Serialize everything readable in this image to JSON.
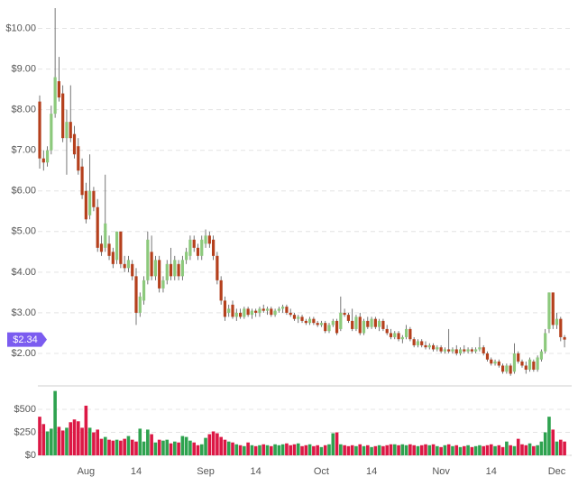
{
  "chart_data": {
    "type": "candlestick",
    "categories": [
      null,
      null,
      null,
      null,
      null,
      null,
      null,
      null,
      null,
      null,
      null,
      null,
      "Aug",
      null,
      null,
      null,
      null,
      null,
      null,
      null,
      null,
      null,
      null,
      null,
      null,
      "14",
      null,
      null,
      null,
      null,
      null,
      null,
      null,
      null,
      null,
      null,
      null,
      null,
      null,
      null,
      null,
      null,
      null,
      "Sep",
      null,
      null,
      null,
      null,
      null,
      null,
      null,
      null,
      null,
      null,
      null,
      null,
      "14",
      null,
      null,
      null,
      null,
      null,
      null,
      null,
      null,
      null,
      null,
      null,
      null,
      null,
      null,
      null,
      null,
      "Oct",
      null,
      null,
      null,
      null,
      null,
      null,
      null,
      null,
      null,
      null,
      null,
      null,
      "14",
      null,
      null,
      null,
      null,
      null,
      null,
      null,
      null,
      null,
      null,
      null,
      null,
      null,
      null,
      null,
      null,
      null,
      "Nov",
      null,
      null,
      null,
      null,
      null,
      null,
      null,
      null,
      null,
      null,
      null,
      null,
      "14",
      null,
      null,
      null,
      null,
      null,
      null,
      null,
      null,
      null,
      null,
      null,
      null,
      null,
      null,
      null,
      null,
      "Dec",
      null,
      null
    ],
    "open": [
      8.2,
      6.8,
      6.7,
      7.0,
      7.9,
      8.7,
      8.4,
      7.3,
      7.7,
      7.4,
      7.1,
      6.6,
      6.0,
      5.4,
      6.0,
      5.6,
      4.7,
      4.6,
      4.7,
      4.5,
      4.3,
      5.0,
      4.2,
      4.1,
      4.2,
      3.9,
      3.0,
      3.3,
      3.8,
      4.5,
      3.9,
      4.3,
      3.6,
      3.8,
      4.2,
      3.9,
      4.2,
      3.9,
      4.3,
      4.4,
      4.8,
      4.6,
      4.4,
      4.7,
      4.9,
      4.8,
      4.4,
      3.8,
      3.3,
      3.0,
      3.2,
      2.9,
      3.0,
      2.9,
      3.1,
      2.95,
      3.05,
      3.0,
      3.1,
      3.05,
      3.1,
      2.95,
      3.05,
      3.1,
      3.15,
      3.0,
      2.95,
      2.85,
      2.9,
      2.8,
      2.75,
      2.85,
      2.75,
      2.7,
      2.75,
      2.55,
      2.7,
      2.8,
      2.6,
      3.0,
      2.95,
      2.8,
      2.6,
      2.9,
      2.5,
      2.8,
      2.65,
      2.85,
      2.65,
      2.8,
      2.6,
      2.5,
      2.4,
      2.5,
      2.35,
      2.4,
      2.6,
      2.35,
      2.2,
      2.3,
      2.2,
      2.15,
      2.2,
      2.1,
      2.15,
      2.05,
      2.1,
      2.05,
      2.1,
      2.0,
      2.1,
      2.05,
      2.1,
      2.05,
      2.1,
      2.15,
      2.0,
      1.85,
      1.75,
      1.8,
      1.7,
      1.55,
      1.7,
      1.55,
      2.0,
      1.8,
      1.7,
      1.6,
      1.8,
      1.6,
      1.85,
      2.05,
      2.6,
      3.5,
      2.7,
      2.85,
      2.4
    ],
    "high": [
      8.35,
      7.0,
      7.1,
      8.1,
      10.5,
      9.3,
      8.6,
      8.0,
      8.6,
      7.6,
      7.3,
      6.8,
      6.2,
      6.9,
      6.1,
      5.8,
      4.9,
      6.4,
      4.9,
      4.6,
      5.0,
      5.0,
      4.4,
      4.4,
      4.3,
      4.1,
      3.5,
      3.9,
      5.0,
      4.9,
      4.4,
      4.4,
      3.9,
      4.3,
      4.6,
      4.4,
      4.3,
      4.4,
      4.6,
      4.9,
      4.9,
      4.7,
      4.9,
      5.05,
      5.0,
      4.9,
      4.5,
      3.9,
      3.4,
      3.2,
      3.3,
      3.1,
      3.1,
      3.15,
      3.15,
      3.1,
      3.1,
      3.15,
      3.2,
      3.15,
      3.15,
      3.1,
      3.15,
      3.2,
      3.2,
      3.1,
      3.0,
      2.95,
      2.95,
      2.85,
      2.9,
      2.9,
      2.8,
      2.8,
      2.8,
      2.75,
      2.85,
      2.85,
      3.4,
      3.1,
      3.0,
      3.1,
      2.95,
      3.0,
      2.85,
      2.9,
      2.9,
      2.9,
      2.85,
      2.85,
      2.7,
      2.6,
      2.55,
      2.55,
      2.45,
      2.7,
      2.65,
      2.4,
      2.35,
      2.35,
      2.3,
      2.25,
      2.25,
      2.2,
      2.2,
      2.15,
      2.6,
      2.15,
      2.2,
      2.15,
      2.2,
      2.15,
      2.15,
      2.15,
      2.4,
      2.2,
      2.05,
      1.9,
      1.85,
      1.85,
      1.75,
      1.75,
      1.75,
      2.25,
      2.05,
      1.85,
      1.8,
      1.9,
      1.85,
      1.95,
      2.1,
      2.6,
      3.5,
      3.5,
      3.0,
      2.9,
      2.45
    ],
    "low": [
      6.55,
      6.5,
      6.6,
      6.9,
      7.8,
      8.2,
      7.2,
      6.4,
      7.2,
      6.8,
      6.4,
      5.8,
      5.2,
      5.3,
      5.5,
      4.5,
      4.4,
      4.5,
      4.3,
      4.1,
      4.2,
      4.1,
      4.0,
      4.0,
      3.8,
      2.7,
      2.9,
      3.2,
      3.7,
      3.8,
      3.8,
      3.5,
      3.5,
      3.7,
      3.8,
      3.8,
      3.8,
      3.8,
      4.2,
      4.3,
      4.5,
      4.3,
      4.3,
      4.6,
      4.6,
      4.3,
      3.7,
      3.2,
      2.8,
      2.9,
      2.85,
      2.8,
      2.85,
      2.85,
      2.9,
      2.85,
      2.9,
      2.9,
      3.0,
      2.95,
      2.9,
      2.9,
      3.0,
      3.0,
      2.95,
      2.9,
      2.8,
      2.75,
      2.75,
      2.7,
      2.7,
      2.7,
      2.65,
      2.65,
      2.5,
      2.5,
      2.65,
      2.45,
      2.55,
      2.9,
      2.75,
      2.55,
      2.55,
      2.45,
      2.45,
      2.6,
      2.6,
      2.6,
      2.55,
      2.55,
      2.45,
      2.35,
      2.35,
      2.3,
      2.25,
      2.35,
      2.3,
      2.15,
      2.15,
      2.15,
      2.1,
      2.1,
      2.05,
      2.05,
      2.0,
      2.0,
      2.0,
      2.0,
      1.95,
      1.95,
      2.0,
      2.0,
      2.0,
      2.0,
      2.05,
      1.95,
      1.8,
      1.7,
      1.7,
      1.65,
      1.5,
      1.5,
      1.45,
      1.5,
      1.75,
      1.65,
      1.5,
      1.55,
      1.55,
      1.55,
      1.8,
      2.0,
      2.5,
      2.6,
      2.6,
      2.3,
      2.15
    ],
    "close": [
      6.8,
      6.7,
      7.0,
      7.9,
      8.8,
      8.3,
      7.3,
      7.7,
      7.3,
      6.9,
      6.5,
      5.9,
      5.3,
      6.0,
      5.6,
      4.6,
      4.5,
      5.2,
      4.4,
      4.2,
      5.0,
      4.2,
      4.1,
      4.3,
      3.9,
      3.0,
      3.4,
      3.8,
      4.8,
      3.9,
      4.3,
      3.6,
      3.8,
      4.2,
      3.9,
      4.3,
      3.9,
      4.3,
      4.5,
      4.8,
      4.6,
      4.4,
      4.8,
      4.9,
      4.7,
      4.4,
      3.8,
      3.3,
      2.9,
      3.1,
      2.9,
      3.0,
      2.9,
      3.1,
      2.95,
      3.05,
      3.0,
      3.1,
      3.05,
      3.1,
      2.95,
      3.05,
      3.1,
      3.15,
      3.0,
      2.95,
      2.85,
      2.9,
      2.8,
      2.75,
      2.85,
      2.75,
      2.7,
      2.75,
      2.55,
      2.7,
      2.8,
      2.5,
      3.0,
      2.95,
      2.8,
      2.6,
      2.9,
      2.5,
      2.8,
      2.65,
      2.85,
      2.65,
      2.8,
      2.6,
      2.5,
      2.4,
      2.5,
      2.35,
      2.4,
      2.6,
      2.35,
      2.2,
      2.3,
      2.2,
      2.15,
      2.2,
      2.1,
      2.15,
      2.05,
      2.1,
      2.05,
      2.1,
      2.0,
      2.1,
      2.05,
      2.1,
      2.05,
      2.1,
      2.15,
      2.0,
      1.85,
      1.75,
      1.8,
      1.7,
      1.55,
      1.7,
      1.5,
      2.0,
      1.8,
      1.7,
      1.6,
      1.85,
      1.6,
      1.9,
      2.05,
      2.5,
      3.5,
      2.7,
      2.85,
      2.4,
      2.34
    ],
    "ylim": [
      1.2,
      10.7
    ],
    "yticks": [
      {
        "value": 2,
        "label": "$2.00"
      },
      {
        "value": 3,
        "label": "$3.00"
      },
      {
        "value": 4,
        "label": "$4.00"
      },
      {
        "value": 5,
        "label": "$5.00"
      },
      {
        "value": 6,
        "label": "$6.00"
      },
      {
        "value": 7,
        "label": "$7.00"
      },
      {
        "value": 8,
        "label": "$8.00"
      },
      {
        "value": 9,
        "label": "$9.00"
      },
      {
        "value": 10,
        "label": "$10.00"
      }
    ],
    "up_color": "#8cc97c",
    "down_color": "#b5401d",
    "last_price": {
      "value": 2.34,
      "label": "$2.34"
    },
    "last_price_color": "#7b5cf0",
    "volume": {
      "values": [
        420,
        340,
        260,
        290,
        700,
        310,
        270,
        300,
        360,
        390,
        370,
        300,
        540,
        300,
        250,
        280,
        180,
        200,
        170,
        160,
        170,
        160,
        180,
        210,
        170,
        150,
        290,
        150,
        280,
        230,
        140,
        170,
        160,
        170,
        130,
        150,
        140,
        210,
        200,
        160,
        140,
        110,
        120,
        190,
        230,
        260,
        240,
        200,
        170,
        150,
        140,
        120,
        110,
        100,
        140,
        110,
        100,
        110,
        120,
        110,
        100,
        120,
        110,
        120,
        130,
        110,
        120,
        130,
        100,
        110,
        120,
        100,
        110,
        90,
        110,
        120,
        240,
        250,
        120,
        110,
        100,
        110,
        100,
        120,
        100,
        110,
        90,
        100,
        110,
        100,
        110,
        120,
        120,
        110,
        120,
        110,
        120,
        110,
        100,
        110,
        120,
        110,
        120,
        100,
        90,
        110,
        120,
        100,
        110,
        90,
        100,
        110,
        90,
        100,
        110,
        100,
        110,
        120,
        100,
        110,
        90,
        150,
        110,
        100,
        180,
        120,
        110,
        130,
        100,
        110,
        150,
        250,
        420,
        280,
        150,
        170,
        150
      ],
      "ylim": [
        0,
        750
      ],
      "yticks": [
        {
          "value": 0,
          "label": "$0"
        },
        {
          "value": 250,
          "label": "$250"
        },
        {
          "value": 500,
          "label": "$500"
        }
      ],
      "up_color": "#2ea24f",
      "down_color": "#dc1845"
    }
  }
}
